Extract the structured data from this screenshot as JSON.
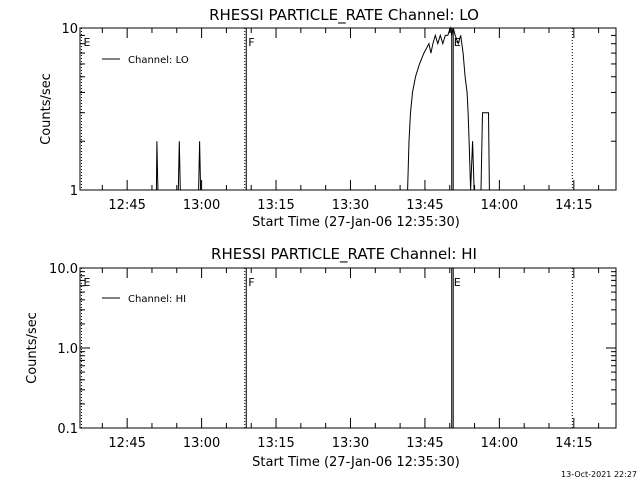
{
  "footer": {
    "timestamp": "13-Oct-2021 22:27"
  },
  "chart_data": [
    {
      "type": "line",
      "title": "RHESSI PARTICLE_RATE Channel: LO",
      "xlabel": "Start Time (27-Jan-06 12:35:30)",
      "ylabel": "Counts/sec",
      "y_scale": "log",
      "ylim": [
        1,
        10
      ],
      "y_ticks": [
        {
          "value": 1,
          "label": "1"
        },
        {
          "value": 10,
          "label": "10"
        }
      ],
      "x_range_minutes": [
        0,
        75.5
      ],
      "x_ticks": [
        {
          "minute": 9.5,
          "label": "12:45"
        },
        {
          "minute": 24.5,
          "label": "13:00"
        },
        {
          "minute": 39.5,
          "label": "13:15"
        },
        {
          "minute": 54.5,
          "label": "13:30"
        },
        {
          "minute": 69.5,
          "label": "13:45"
        },
        {
          "minute": 84.5,
          "label": "14:00"
        },
        {
          "minute": 99.5,
          "label": "14:15"
        }
      ],
      "markers": [
        {
          "minute": 0.3,
          "label": "E",
          "style": "dotted"
        },
        {
          "minute": 33.2,
          "label": "",
          "style": "dotted"
        },
        {
          "minute": 33.5,
          "label": "F",
          "style": "solid"
        },
        {
          "minute": 74.9,
          "label": "E",
          "style": "solid"
        },
        {
          "minute": 75.2,
          "label": "",
          "style": "solid"
        },
        {
          "minute": 99.2,
          "label": "",
          "style": "dotted"
        }
      ],
      "legend": {
        "placement": "top-left",
        "entries": [
          "Channel: LO"
        ]
      },
      "series": [
        {
          "name": "Channel: LO",
          "points": [
            [
              0,
              1
            ],
            [
              15.4,
              1
            ],
            [
              15.5,
              2
            ],
            [
              15.7,
              1
            ],
            [
              19.8,
              1
            ],
            [
              20.0,
              2
            ],
            [
              20.2,
              1
            ],
            [
              23.9,
              1
            ],
            [
              24.1,
              2
            ],
            [
              24.3,
              1
            ],
            [
              66.0,
              1
            ],
            [
              66.3,
              2
            ],
            [
              66.6,
              3
            ],
            [
              67.0,
              4
            ],
            [
              67.6,
              5
            ],
            [
              68.4,
              6
            ],
            [
              69.3,
              7
            ],
            [
              70.3,
              8
            ],
            [
              70.7,
              7
            ],
            [
              71.1,
              8
            ],
            [
              71.6,
              9
            ],
            [
              72.1,
              8
            ],
            [
              72.6,
              9
            ],
            [
              73.1,
              8
            ],
            [
              73.6,
              9
            ],
            [
              74.1,
              9
            ],
            [
              74.6,
              10
            ],
            [
              74.9,
              9
            ],
            [
              75.2,
              10
            ],
            [
              75.6,
              9
            ],
            [
              76.2,
              8
            ],
            [
              76.7,
              9
            ],
            [
              77.2,
              7
            ],
            [
              77.6,
              5
            ],
            [
              78.0,
              4
            ],
            [
              78.2,
              3
            ],
            [
              78.4,
              2
            ],
            [
              78.7,
              1
            ],
            [
              79.1,
              2
            ],
            [
              79.4,
              1
            ],
            [
              80.8,
              1
            ],
            [
              81.1,
              3
            ],
            [
              82.3,
              3
            ],
            [
              82.5,
              1
            ],
            [
              83.5,
              1
            ]
          ]
        }
      ]
    },
    {
      "type": "line",
      "title": "RHESSI PARTICLE_RATE Channel: HI",
      "xlabel": "Start Time (27-Jan-06 12:35:30)",
      "ylabel": "Counts/sec",
      "y_scale": "log",
      "ylim": [
        0.1,
        10
      ],
      "y_ticks": [
        {
          "value": 0.1,
          "label": "0.1"
        },
        {
          "value": 1,
          "label": "1.0"
        },
        {
          "value": 10,
          "label": "10.0"
        }
      ],
      "x_range_minutes": [
        0,
        75.5
      ],
      "x_ticks": [
        {
          "minute": 9.5,
          "label": "12:45"
        },
        {
          "minute": 24.5,
          "label": "13:00"
        },
        {
          "minute": 39.5,
          "label": "13:15"
        },
        {
          "minute": 54.5,
          "label": "13:30"
        },
        {
          "minute": 69.5,
          "label": "13:45"
        },
        {
          "minute": 84.5,
          "label": "14:00"
        },
        {
          "minute": 99.5,
          "label": "14:15"
        }
      ],
      "markers": [
        {
          "minute": 0.3,
          "label": "E",
          "style": "dotted"
        },
        {
          "minute": 33.2,
          "label": "",
          "style": "dotted"
        },
        {
          "minute": 33.5,
          "label": "F",
          "style": "solid"
        },
        {
          "minute": 74.9,
          "label": "E",
          "style": "solid"
        },
        {
          "minute": 75.2,
          "label": "",
          "style": "solid"
        },
        {
          "minute": 99.2,
          "label": "",
          "style": "dotted"
        }
      ],
      "legend": {
        "placement": "top-left",
        "entries": [
          "Channel: HI"
        ]
      },
      "series": [
        {
          "name": "Channel: HI",
          "points": []
        }
      ]
    }
  ]
}
